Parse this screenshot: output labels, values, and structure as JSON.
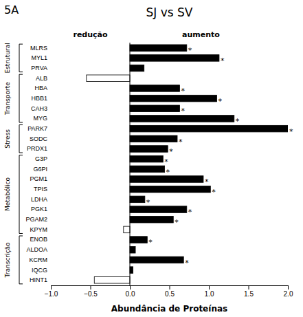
{
  "chart_data": {
    "type": "bar",
    "orientation": "horizontal",
    "title": "SJ vs SV",
    "xlabel": "Abundância de Proteínas",
    "categories": [
      "MLRS",
      "MYL1",
      "PRVA",
      "ALB",
      "HBA",
      "HBB1",
      "CAH3",
      "MYG",
      "PARK7",
      "SODC",
      "PRDX1",
      "G3P",
      "G6PI",
      "PGM1",
      "TPIS",
      "LDHA",
      "PGK1",
      "PGAM2",
      "KPYM",
      "ENOB",
      "ALDOA",
      "KCRM",
      "IQCG",
      "HINT1"
    ],
    "values": [
      0.72,
      1.13,
      0.18,
      -0.55,
      0.63,
      1.1,
      0.63,
      1.32,
      2.0,
      0.6,
      0.48,
      0.42,
      0.44,
      0.93,
      1.02,
      0.19,
      0.72,
      0.55,
      -0.08,
      0.22,
      0.07,
      0.68,
      0.04,
      -0.45
    ],
    "colors": [
      "#000000",
      "#000000",
      "#000000",
      "#ffffff",
      "#000000",
      "#000000",
      "#000000",
      "#000000",
      "#000000",
      "#000000",
      "#000000",
      "#000000",
      "#000000",
      "#000000",
      "#000000",
      "#000000",
      "#000000",
      "#000000",
      "#ffffff",
      "#000000",
      "#000000",
      "#000000",
      "#000000",
      "#ffffff"
    ],
    "xlim": [
      -1.0,
      2.0
    ],
    "xticks": [
      {
        "value": -1.0,
        "label": "−1.0"
      },
      {
        "value": -0.5,
        "label": "−0.5"
      },
      {
        "value": 0.0,
        "label": "0.0"
      },
      {
        "value": 0.5,
        "label": "0.5"
      },
      {
        "value": 1.0,
        "label": "1.0"
      },
      {
        "value": 1.5,
        "label": "1.5"
      },
      {
        "value": 2.0,
        "label": "2.0"
      }
    ],
    "grid": false,
    "groups": [
      {
        "name": "Estrutural",
        "first": "MLRS",
        "last": "PRVA"
      },
      {
        "name": "Transporte",
        "first": "ALB",
        "last": "MYG"
      },
      {
        "name": "Stress",
        "first": "PARK7",
        "last": "PRDX1"
      },
      {
        "name": "Metabólico",
        "first": "G3P",
        "last": "KPYM"
      },
      {
        "name": "Transcrição",
        "first": "ENOB",
        "last": "HINT1"
      }
    ],
    "annotations": [
      {
        "text": "5A"
      },
      {
        "text": "redução",
        "x": -0.5
      },
      {
        "text": "aumento",
        "x": 0.9
      },
      {
        "text": "*",
        "category": "MLRS"
      },
      {
        "text": "*",
        "category": "MYL1"
      },
      {
        "text": "*",
        "category": "HBA"
      },
      {
        "text": "*",
        "category": "HBB1"
      },
      {
        "text": "*",
        "category": "CAH3"
      },
      {
        "text": "*",
        "category": "MYG"
      },
      {
        "text": "*",
        "category": "PARK7"
      },
      {
        "text": "*",
        "category": "SODC"
      },
      {
        "text": "*",
        "category": "PRDX1"
      },
      {
        "text": "*",
        "category": "G3P"
      },
      {
        "text": "*",
        "category": "G6PI"
      },
      {
        "text": "*",
        "category": "PGM1"
      },
      {
        "text": "*",
        "category": "TPIS"
      },
      {
        "text": "*",
        "category": "LDHA"
      },
      {
        "text": "*",
        "category": "PGK1"
      },
      {
        "text": "*",
        "category": "PGAM2"
      },
      {
        "text": "*",
        "category": "ENOB"
      },
      {
        "text": "*",
        "category": "KCRM"
      }
    ]
  }
}
